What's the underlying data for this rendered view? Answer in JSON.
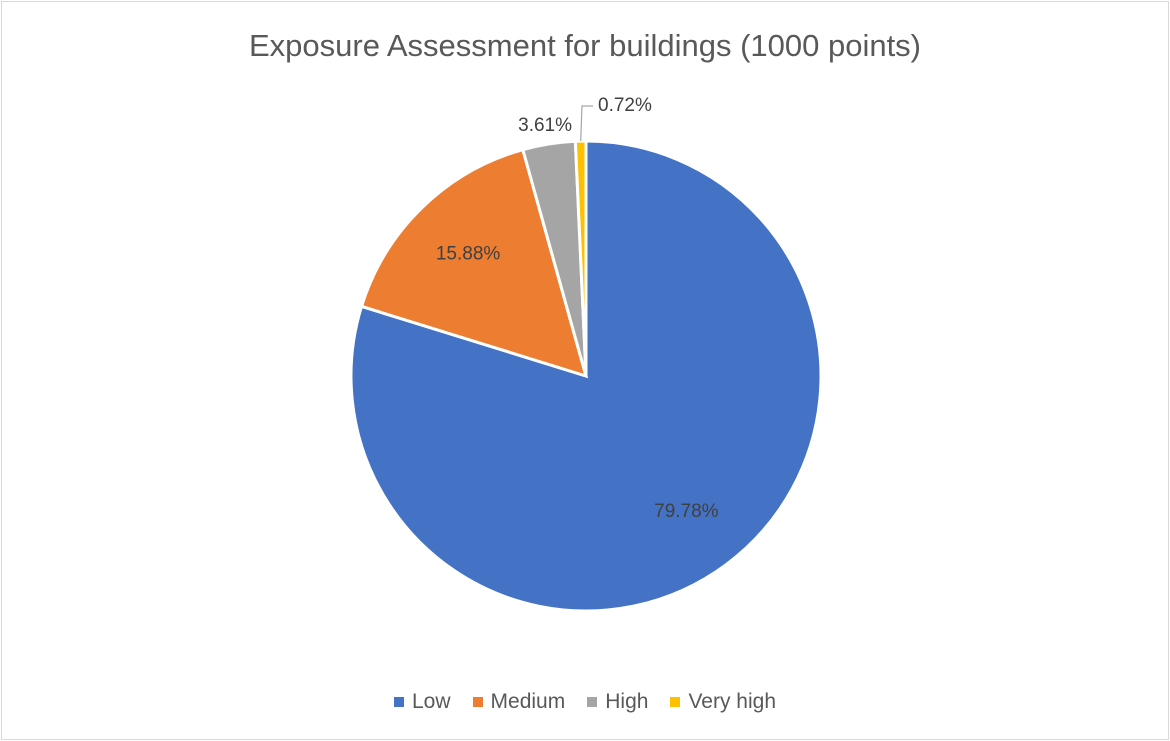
{
  "chart_data": {
    "type": "pie",
    "title": "Exposure Assessment for buildings (1000 points)",
    "categories": [
      "Low",
      "Medium",
      "High",
      "Very high"
    ],
    "values": [
      79.78,
      15.88,
      3.61,
      0.72
    ],
    "data_labels": [
      "79.78%",
      "15.88%",
      "3.61%",
      "0.72%"
    ],
    "colors": [
      "#4472C4",
      "#ED7D31",
      "#A5A5A5",
      "#FFC000"
    ],
    "legend_position": "bottom"
  }
}
